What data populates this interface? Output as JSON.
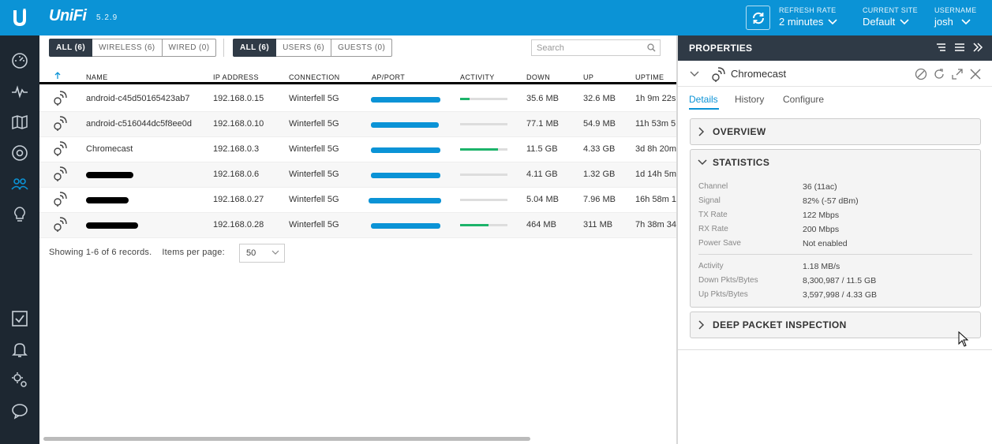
{
  "app": {
    "brand": "UniFi",
    "version": "5.2.9"
  },
  "topbar": {
    "refresh_caption": "REFRESH RATE",
    "refresh_value": "2 minutes",
    "site_caption": "CURRENT SITE",
    "site_value": "Default",
    "user_caption": "USERNAME",
    "user_value": "josh"
  },
  "nav": {
    "items": [
      "dashboard-icon",
      "statistics-icon",
      "map-icon",
      "devices-icon",
      "clients-icon",
      "insights-icon",
      "events-icon",
      "alerts-icon",
      "settings-icon",
      "support-icon"
    ]
  },
  "filters": {
    "type": [
      "ALL (6)",
      "WIRELESS (6)",
      "WIRED (0)"
    ],
    "audience": [
      "ALL (6)",
      "USERS (6)",
      "GUESTS (0)"
    ],
    "search_placeholder": "Search"
  },
  "table": {
    "headers": {
      "name": "NAME",
      "ip": "IP ADDRESS",
      "connection": "CONNECTION",
      "ap": "AP/PORT",
      "activity": "ACTIVITY",
      "down": "DOWN",
      "up": "UP",
      "uptime": "UPTIME"
    },
    "rows": [
      {
        "name": "android-c45d50165423ab7",
        "ip": "192.168.0.15",
        "connection": "Winterfell 5G",
        "activity": 0.2,
        "down": "35.6 MB",
        "up": "32.6 MB",
        "uptime": "1h 9m 22s"
      },
      {
        "name": "android-c516044dc5f8ee0d",
        "ip": "192.168.0.10",
        "connection": "Winterfell 5G",
        "activity": 0,
        "down": "77.1 MB",
        "up": "54.9 MB",
        "uptime": "11h 53m 5"
      },
      {
        "name": "Chromecast",
        "ip": "192.168.0.3",
        "connection": "Winterfell 5G",
        "activity": 0.8,
        "down": "11.5 GB",
        "up": "4.33 GB",
        "uptime": "3d 8h 20m"
      },
      {
        "name": "",
        "ip": "192.168.0.6",
        "connection": "Winterfell 5G",
        "activity": 0,
        "down": "4.11 GB",
        "up": "1.32 GB",
        "uptime": "1d 14h 5m"
      },
      {
        "name": "",
        "ip": "192.168.0.27",
        "connection": "Winterfell 5G",
        "activity": 0,
        "down": "5.04 MB",
        "up": "7.96 MB",
        "uptime": "16h 58m 1"
      },
      {
        "name": "",
        "ip": "192.168.0.28",
        "connection": "Winterfell 5G",
        "activity": 0.6,
        "down": "464 MB",
        "up": "311 MB",
        "uptime": "7h 38m 34"
      }
    ]
  },
  "footer": {
    "showing": "Showing 1-6 of 6 records.",
    "items_per_page_label": "Items per page:",
    "items_per_page_value": "50"
  },
  "properties": {
    "title": "PROPERTIES",
    "device_name": "Chromecast",
    "tabs": [
      "Details",
      "History",
      "Configure"
    ],
    "overview_title": "OVERVIEW",
    "statistics_title": "STATISTICS",
    "dpi_title": "DEEP PACKET INSPECTION",
    "stats": [
      {
        "label": "Channel",
        "value": "36 (11ac)"
      },
      {
        "label": "Signal",
        "value": "82% (-57 dBm)"
      },
      {
        "label": "TX Rate",
        "value": "122 Mbps"
      },
      {
        "label": "RX Rate",
        "value": "200 Mbps"
      },
      {
        "label": "Power Save",
        "value": "Not enabled"
      }
    ],
    "stats2": [
      {
        "label": "Activity",
        "value": "1.18 MB/s"
      },
      {
        "label": "Down Pkts/Bytes",
        "value": "8,300,987 / 11.5 GB"
      },
      {
        "label": "Up Pkts/Bytes",
        "value": "3,597,998 / 4.33 GB"
      }
    ]
  },
  "colors": {
    "brand_blue": "#0b93d6",
    "nav_dark": "#1d2731",
    "panel_dark": "#2f3a46",
    "activity_green": "#1cb36a"
  }
}
